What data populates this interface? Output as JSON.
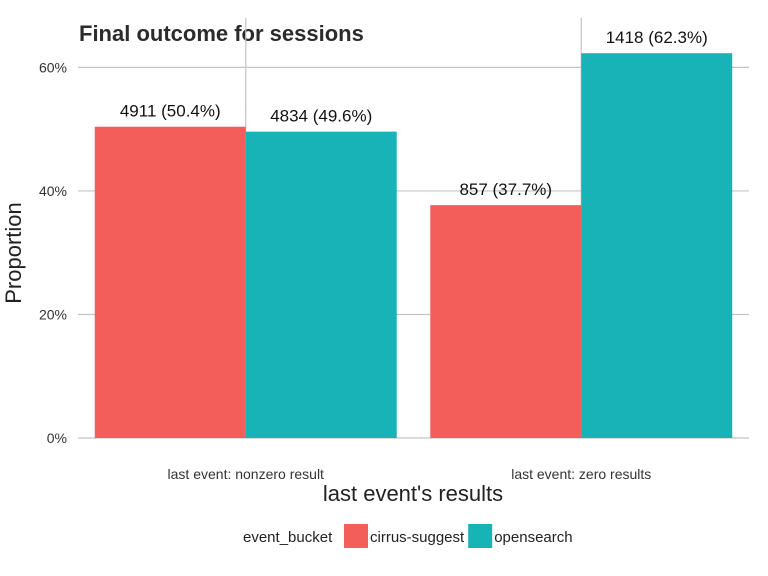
{
  "chart_data": {
    "type": "bar",
    "title": "Final outcome for sessions",
    "xlabel": "last event's results",
    "ylabel": "Proportion",
    "categories": [
      "last event: nonzero result",
      "last event: zero results"
    ],
    "series": [
      {
        "name": "cirrus-suggest",
        "color": "#F35E5A",
        "values": [
          0.504,
          0.377
        ],
        "labels": [
          "4911 (50.4%)",
          "857 (37.7%)"
        ]
      },
      {
        "name": "opensearch",
        "color": "#17B3B7",
        "values": [
          0.496,
          0.623
        ],
        "labels": [
          "4834 (49.6%)",
          "1418 (62.3%)"
        ]
      }
    ],
    "ylim": [
      0,
      0.68
    ],
    "yticks": [
      0,
      0.2,
      0.4,
      0.6
    ],
    "ytick_labels": [
      "0%",
      "20%",
      "40%",
      "60%"
    ],
    "grid": true,
    "legend": {
      "title": "event_bucket",
      "position": "bottom"
    }
  }
}
